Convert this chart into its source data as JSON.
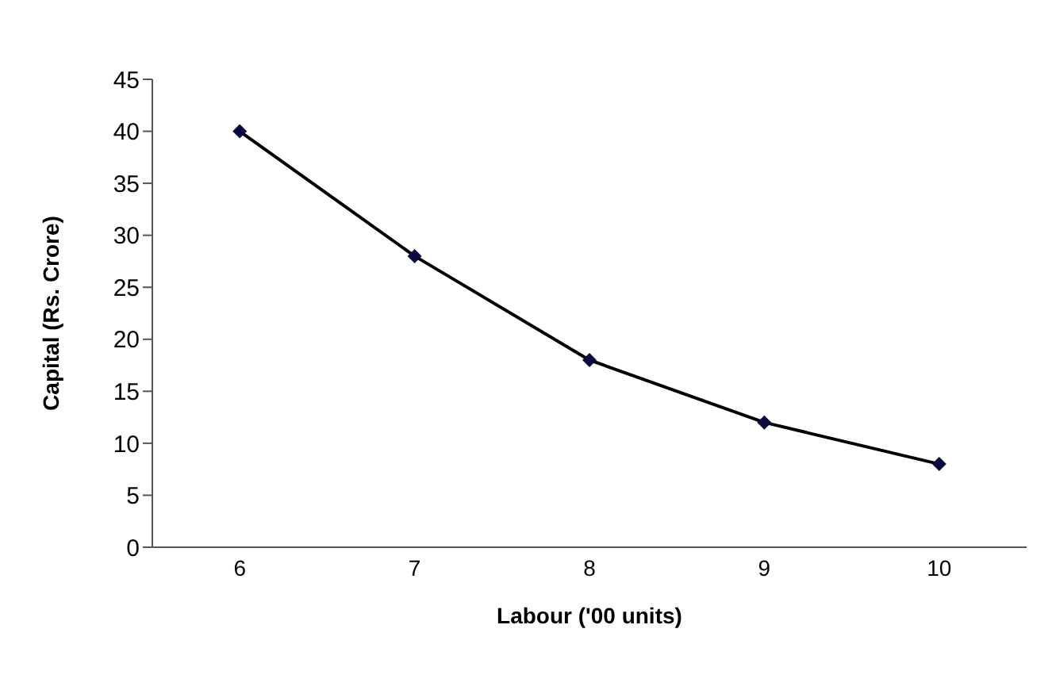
{
  "chart_data": {
    "type": "line",
    "xlabel": "Labour ('00 units)",
    "ylabel": "Capital (Rs. Crore)",
    "categories": [
      "6",
      "7",
      "8",
      "9",
      "10"
    ],
    "series": [
      {
        "color": "#0a0a40",
        "values": [
          40,
          28,
          18,
          12,
          8
        ]
      }
    ],
    "ylim": [
      0,
      45
    ],
    "yticks": [
      0,
      5,
      10,
      15,
      20,
      25,
      30,
      35,
      40,
      45
    ],
    "marker": "diamond",
    "line_style": "solid"
  }
}
